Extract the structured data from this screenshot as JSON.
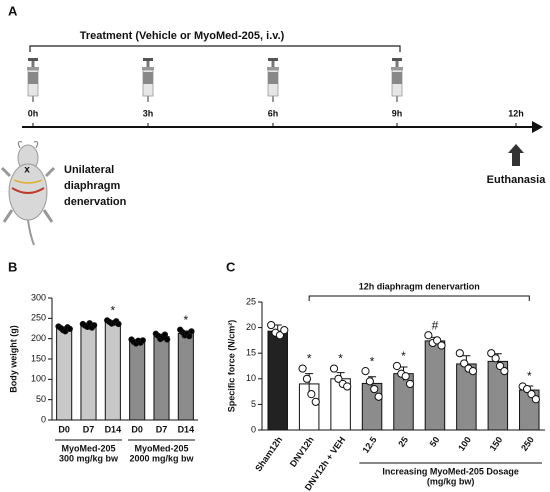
{
  "panel_a": {
    "panel_label": "A",
    "title": "Treatment (Vehicle or MyoMed-205, i.v.)",
    "timepoints": [
      "0h",
      "3h",
      "6h",
      "9h",
      "12h"
    ],
    "surgery": [
      "Unilateral",
      "diaphragm",
      "denervation"
    ],
    "mouse_mark": "x",
    "endpoint": "Euthanasia"
  },
  "chart_data": [
    {
      "type": "bar",
      "panel_label": "B",
      "ylabel": "Body weight (g)",
      "categories": [
        "D0",
        "D7",
        "D14",
        "D0",
        "D7",
        "D14"
      ],
      "values": [
        225,
        232,
        240,
        193,
        205,
        213
      ],
      "errors": [
        4,
        4,
        3,
        4,
        6,
        6
      ],
      "colors": [
        "#c8c8c8",
        "#c8c8c8",
        "#c8c8c8",
        "#8c8c8c",
        "#8c8c8c",
        "#8c8c8c"
      ],
      "point_fill": "#000000",
      "points": [
        [
          230,
          226,
          221,
          218,
          228,
          224
        ],
        [
          236,
          232,
          229,
          238,
          227,
          233
        ],
        [
          245,
          241,
          237,
          239,
          243,
          236
        ],
        [
          198,
          192,
          188,
          195,
          190,
          196
        ],
        [
          212,
          207,
          199,
          203,
          210,
          198
        ],
        [
          222,
          216,
          208,
          212,
          206,
          218
        ]
      ],
      "markers": [
        null,
        null,
        "*",
        null,
        null,
        "*"
      ],
      "groups": [
        [
          "MyoMed-205",
          "300 mg/kg bw"
        ],
        [
          "MyoMed-205",
          "2000 mg/kg bw"
        ]
      ],
      "ylim": [
        0,
        300
      ],
      "yticks": [
        0,
        50,
        100,
        150,
        200,
        250,
        300
      ]
    },
    {
      "type": "bar",
      "panel_label": "C",
      "ylabel": "Specific force (N/cm²)",
      "bracket": "12h diaphragm denervartion",
      "categories": [
        "Sham12h",
        "DNV12h",
        "DNV12h + VEH",
        "12.5",
        "25",
        "50",
        "100",
        "150",
        "250"
      ],
      "values": [
        19.3,
        9,
        10,
        9.1,
        11,
        17.4,
        12.9,
        13.4,
        7.8
      ],
      "errors": [
        1.2,
        2,
        1.2,
        1.3,
        1.3,
        0.7,
        1.6,
        1.5,
        0.8
      ],
      "colors": [
        "#222222",
        "#ffffff",
        "#ffffff",
        "#8c8c8c",
        "#8c8c8c",
        "#8c8c8c",
        "#8c8c8c",
        "#8c8c8c",
        "#8c8c8c"
      ],
      "point_fill": "#ffffff",
      "points": [
        [
          20.5,
          19,
          18.5,
          19.5
        ],
        [
          12,
          10,
          7,
          5.5
        ],
        [
          12,
          10,
          9,
          8.5
        ],
        [
          11.5,
          9.5,
          8,
          6.5
        ],
        [
          12.5,
          11,
          10.5,
          9
        ],
        [
          18.5,
          17,
          17.5,
          16.5
        ],
        [
          15,
          13,
          12,
          11.5
        ],
        [
          15,
          14,
          12.5,
          11.5
        ],
        [
          8.5,
          8,
          7,
          6
        ]
      ],
      "markers": [
        null,
        "*",
        "*",
        "*",
        "*",
        "#",
        null,
        null,
        "*"
      ],
      "groups": [
        [
          "Increasing MyoMed-205 Dosage",
          "(mg/kg bw)"
        ]
      ],
      "ylim": [
        0,
        25
      ],
      "yticks": [
        0,
        5,
        10,
        15,
        20,
        25
      ]
    }
  ]
}
